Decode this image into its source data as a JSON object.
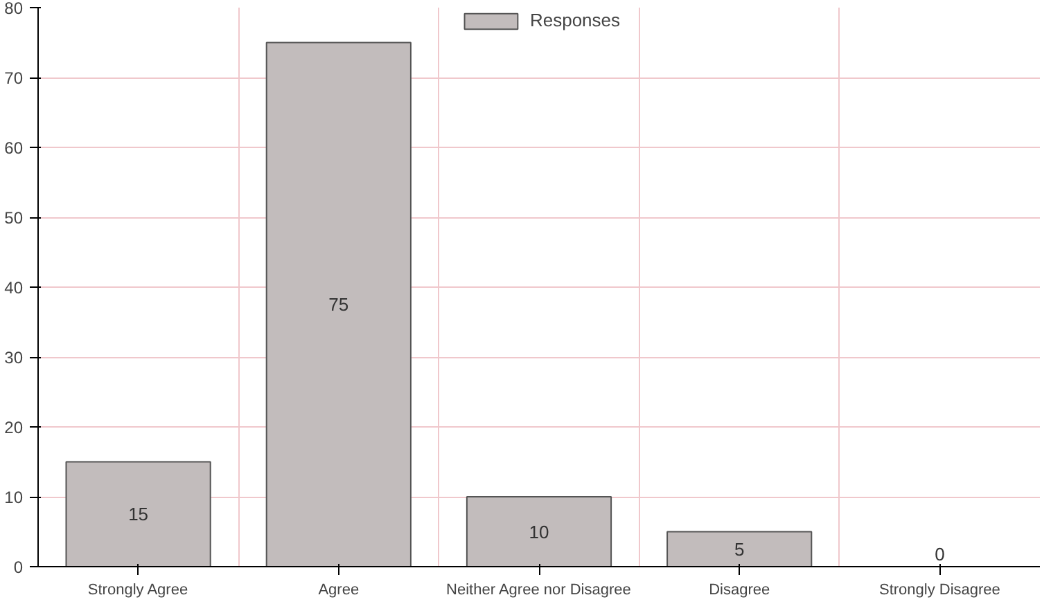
{
  "chart_data": {
    "type": "bar",
    "categories": [
      "Strongly Agree",
      "Agree",
      "Neither Agree nor Disagree",
      "Disagree",
      "Strongly Disagree"
    ],
    "series": [
      {
        "name": "Responses",
        "color": "#c2bcbc",
        "values": [
          15,
          75,
          10,
          5,
          0
        ]
      }
    ],
    "ylim": [
      0,
      80
    ],
    "yticks": [
      0,
      10,
      20,
      30,
      40,
      50,
      60,
      70,
      80
    ],
    "grid": true,
    "legend": "top",
    "data_labels": true
  }
}
